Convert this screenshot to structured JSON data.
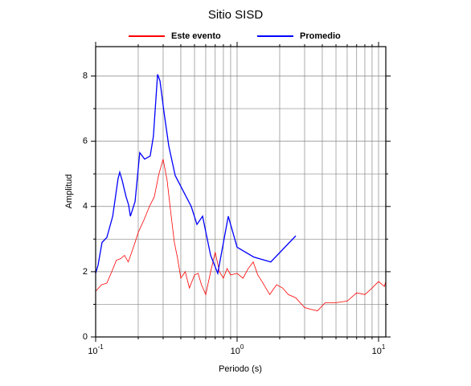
{
  "chart_data": {
    "type": "line",
    "title": "Sitio SISD",
    "xlabel": "Periodo (s)",
    "ylabel": "Amplitud",
    "xscale": "log",
    "xlim": [
      0.1,
      11.25
    ],
    "ylim": [
      0,
      8.9
    ],
    "xticks": [
      {
        "value": 0.1,
        "label": "10",
        "exponent": "-1"
      },
      {
        "value": 1,
        "label": "10",
        "exponent": "0"
      },
      {
        "value": 10,
        "label": "10",
        "exponent": "1"
      }
    ],
    "xminor": [
      0.2,
      0.3,
      0.4,
      0.5,
      0.6,
      0.7,
      0.8,
      0.9,
      2,
      3,
      4,
      5,
      6,
      7,
      8,
      9
    ],
    "yticks": [
      0,
      2,
      4,
      6,
      8
    ],
    "yminor": [
      1,
      3,
      5,
      7
    ],
    "grid": true,
    "series": [
      {
        "name": "Este evento",
        "color": "#ff0000",
        "x": [
          0.1,
          0.11,
          0.12,
          0.13,
          0.14,
          0.15,
          0.16,
          0.17,
          0.18,
          0.19,
          0.2,
          0.22,
          0.24,
          0.26,
          0.28,
          0.3,
          0.32,
          0.34,
          0.36,
          0.38,
          0.4,
          0.43,
          0.46,
          0.5,
          0.53,
          0.56,
          0.6,
          0.65,
          0.7,
          0.75,
          0.8,
          0.85,
          0.9,
          1.0,
          1.1,
          1.2,
          1.3,
          1.4,
          1.5,
          1.7,
          1.9,
          2.1,
          2.3,
          2.6,
          3.0,
          3.3,
          3.7,
          4.2,
          5.0,
          6.0,
          7.0,
          8.0,
          9.0,
          10.0,
          11.0,
          11.25
        ],
        "values": [
          1.4,
          1.6,
          1.65,
          2.0,
          2.35,
          2.4,
          2.5,
          2.3,
          2.6,
          2.9,
          3.2,
          3.6,
          4.0,
          4.3,
          5.0,
          5.45,
          4.8,
          3.8,
          2.9,
          2.4,
          1.8,
          2.0,
          1.5,
          1.9,
          1.95,
          1.6,
          1.3,
          2.0,
          2.6,
          2.0,
          1.8,
          2.1,
          1.9,
          1.95,
          1.8,
          2.1,
          2.3,
          1.9,
          1.7,
          1.3,
          1.6,
          1.5,
          1.3,
          1.2,
          0.9,
          0.85,
          0.8,
          1.05,
          1.05,
          1.1,
          1.35,
          1.3,
          1.5,
          1.7,
          1.55,
          1.7
        ]
      },
      {
        "name": "Promedio",
        "color": "#0000ff",
        "x": [
          0.1,
          0.104,
          0.111,
          0.12,
          0.132,
          0.144,
          0.148,
          0.154,
          0.164,
          0.171,
          0.176,
          0.19,
          0.205,
          0.222,
          0.243,
          0.256,
          0.274,
          0.285,
          0.304,
          0.329,
          0.365,
          0.474,
          0.52,
          0.57,
          0.65,
          0.73,
          0.866,
          1.0,
          1.31,
          1.73,
          2.6
        ],
        "values": [
          1.95,
          2.2,
          2.9,
          3.05,
          3.7,
          4.85,
          5.05,
          4.8,
          4.3,
          4.05,
          3.7,
          4.15,
          5.65,
          5.45,
          5.55,
          6.15,
          8.05,
          7.85,
          6.9,
          5.85,
          4.95,
          4.0,
          3.45,
          3.7,
          2.5,
          1.95,
          3.7,
          2.75,
          2.45,
          2.3,
          3.1
        ]
      }
    ]
  }
}
